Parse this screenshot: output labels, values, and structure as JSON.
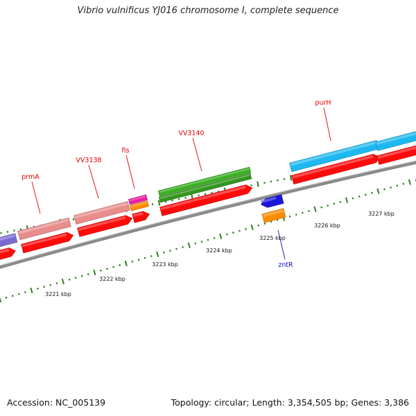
{
  "title": "Vibrio vulnificus YJ016 chromosome I, complete sequence",
  "footer": {
    "accession": "Accession: NC_005139",
    "stats": "Topology: circular; Length: 3,354,505 bp; Genes: 3,386"
  },
  "scale_labels": [
    "3221 kbp",
    "3222 kbp",
    "3223 kbp",
    "3224 kbp",
    "3225 kbp",
    "3226 kbp",
    "3227 kbp"
  ],
  "gene_labels": [
    {
      "name": "prmA",
      "color": "#e00000"
    },
    {
      "name": "VV3138",
      "color": "#e00000"
    },
    {
      "name": "fis",
      "color": "#e00000"
    },
    {
      "name": "VV3140",
      "color": "#e00000"
    },
    {
      "name": "purH",
      "color": "#e00000"
    },
    {
      "name": "zntR",
      "color": "#1010c0"
    }
  ],
  "colors": {
    "backbone": "#8a8a8a",
    "scale_ticks": "#2e7d20",
    "cds": "#ff0a0a",
    "blue": "#1c14d8",
    "orange": "#ff8c00",
    "magenta": "#e81fa0",
    "pink": "#e88c8c",
    "green": "#3cb024",
    "skyblue": "#1eb8f0",
    "purple": "#7a6ad0"
  }
}
